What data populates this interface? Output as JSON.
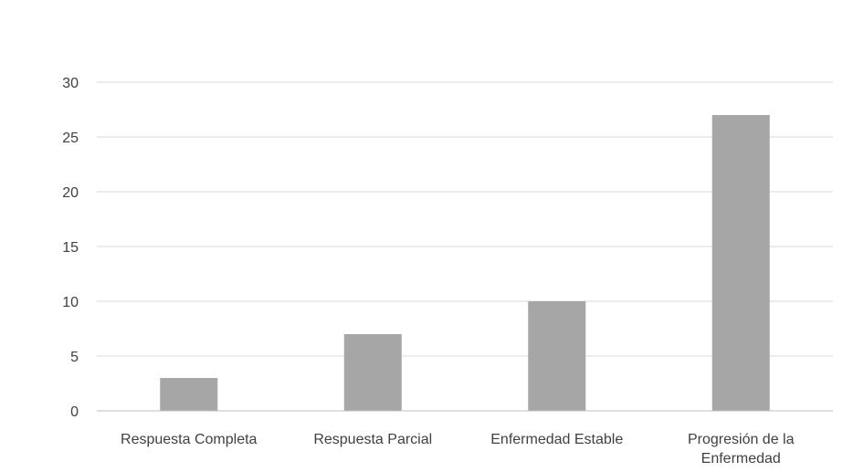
{
  "chart_data": {
    "type": "bar",
    "title": "",
    "categories": [
      "Respuesta Completa",
      "Respuesta Parcial",
      "Enfermedad Estable",
      "Progresión de la Enfermedad"
    ],
    "category_lines": [
      [
        "Respuesta Completa"
      ],
      [
        "Respuesta Parcial"
      ],
      [
        "Enfermedad Estable"
      ],
      [
        "Progresión de la",
        "Enfermedad"
      ]
    ],
    "values": [
      3,
      7,
      10,
      27
    ],
    "ylim": [
      0,
      30
    ],
    "yticks": [
      "0",
      "5",
      "10",
      "15",
      "20",
      "25",
      "30"
    ],
    "xlabel": "",
    "ylabel": "",
    "grid": true,
    "legend": "none",
    "colors": {
      "bar": "#a6a6a6",
      "grid": "#d9d9d9",
      "axis": "#bfbfbf",
      "text": "#404040"
    }
  }
}
